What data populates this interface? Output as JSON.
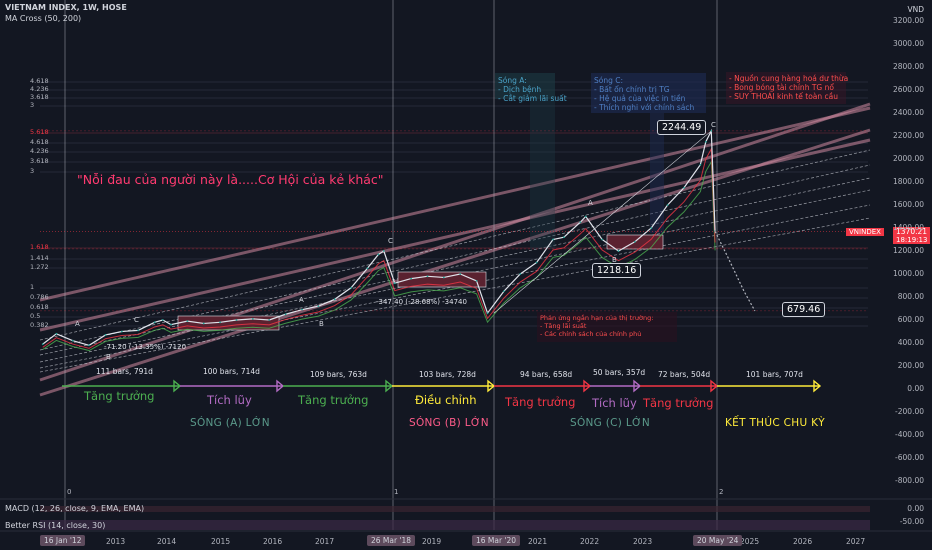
{
  "header": {
    "symbol_line": "VIETNAM INDEX, 1W, HOSE",
    "ma_line": "MA Cross (50, 200)",
    "currency": "VND",
    "macd_line": "MACD (12, 26, close, 9, EMA, EMA)",
    "rsi_line": "Better RSI (14, close, 30)"
  },
  "quote": "\"Nỗi đau của người này là.....Cơ Hội của kẻ khác\"",
  "info_boxes": {
    "wave_a": "Sóng A:\n- Dịch bệnh\n- Cắt giảm lãi suất",
    "wave_c": "Sóng C:\n- Bất ổn chính trị TG\n- Hệ quả của việc in tiền\n- Thích nghi với chính sách",
    "risks": "- Nguồn cung hàng hoá dư thừa\n- Bong bóng tài chính TG nổ\n- SUY THOÁI kinh tế toàn cầu",
    "reaction": "Phản ứng ngắn hạn của thị trường:\n- Tăng lãi suất\n- Các chính sách của chính phủ"
  },
  "price_labels": {
    "peak": "2244.49",
    "trough_2022": "1218.16",
    "target": "679.46",
    "drop_2018": "-347.40 (-28.68%) -34740",
    "drop_2014": "-71.20 (-13.35%) -7120",
    "current_symbol": "VNINDEX",
    "current_price": "1370.21",
    "current_time": "18:19:13"
  },
  "wave_labels": [
    "A",
    "B",
    "C",
    "A",
    "B",
    "C",
    "A",
    "B",
    "C"
  ],
  "bars_labels": [
    "111 bars, 791d",
    "100 bars, 714d",
    "109 bars, 763d",
    "103 bars, 728d",
    "94 bars, 658d",
    "50 bars, 357d",
    "72 bars, 504d",
    "101 bars, 707d"
  ],
  "phase_labels": {
    "p1": "Tăng trưởng",
    "p2": "Tích lũy",
    "p3": "Tăng trưởng",
    "p4": "Điều chỉnh",
    "p5": "Tăng trưởng",
    "p6": "Tích lũy",
    "p7": "Tăng trưởng"
  },
  "wave_phase_labels": {
    "a": "SÓNG (A) LỚN",
    "b": "SÓNG (B) LỚN",
    "c": "SÓNG (C) LỚN",
    "end": "KẾT THÚC CHU KỲ"
  },
  "marker_numbers": [
    "0",
    "1",
    "2"
  ],
  "fib_labels": [
    "4.618",
    "4.236",
    "3.618",
    "3",
    "5.618",
    "4.618",
    "4.236",
    "3.618",
    "3",
    "1.618",
    "1.414",
    "1.272",
    "1",
    "0.786",
    "0.618",
    "0.5",
    "0.382"
  ],
  "y_axis": {
    "ticks": [
      "3200.00",
      "3000.00",
      "2800.00",
      "2600.00",
      "2400.00",
      "2200.00",
      "2000.00",
      "1800.00",
      "1600.00",
      "1400.00",
      "1200.00",
      "1000.00",
      "800.00",
      "600.00",
      "400.00",
      "200.00",
      "0.00",
      "-200.00",
      "-400.00",
      "-600.00",
      "-800.00"
    ],
    "macd_ticks": [
      "0.00",
      "-50.00"
    ]
  },
  "x_axis": {
    "ticks": [
      "2013",
      "2014",
      "2015",
      "2016",
      "2017",
      "2019",
      "2021",
      "2022",
      "2023",
      "2025",
      "2026",
      "2027"
    ],
    "highlights": [
      "16 Jan '12",
      "26 Mar '18",
      "16 Mar '20",
      "20 May '24"
    ]
  },
  "chart_data": {
    "type": "line",
    "title": "VIETNAM INDEX, 1W, HOSE",
    "xlabel": "",
    "ylabel": "",
    "ylim": [
      -800,
      3200
    ],
    "xlim": [
      2012.0,
      2027.3
    ],
    "series": [
      {
        "name": "VNINDEX",
        "x": [
          2012.05,
          2012.3,
          2012.6,
          2012.9,
          2013.2,
          2013.5,
          2013.8,
          2014.1,
          2014.25,
          2014.4,
          2014.7,
          2015.0,
          2015.3,
          2015.6,
          2015.9,
          2016.2,
          2016.5,
          2016.8,
          2017.1,
          2017.4,
          2017.7,
          2018.0,
          2018.2,
          2018.3,
          2018.5,
          2018.8,
          2019.1,
          2019.4,
          2019.7,
          2020.0,
          2020.2,
          2020.5,
          2020.8,
          2021.1,
          2021.4,
          2021.6,
          2021.9,
          2022.0,
          2022.3,
          2022.6,
          2022.9,
          2023.2,
          2023.5,
          2023.8,
          2024.1,
          2024.2,
          2024.3,
          2024.37
        ],
        "y": [
          390,
          480,
          420,
          380,
          470,
          500,
          510,
          580,
          600,
          560,
          590,
          570,
          580,
          600,
          610,
          600,
          650,
          690,
          720,
          780,
          880,
          1050,
          1170,
          1200,
          920,
          960,
          980,
          970,
          1000,
          940,
          660,
          850,
          1000,
          1100,
          1300,
          1320,
          1450,
          1500,
          1300,
          1200,
          1280,
          1400,
          1600,
          1750,
          1950,
          2150,
          2244,
          1370
        ]
      }
    ],
    "projection": {
      "name": "Projection",
      "x": [
        2024.37,
        2024.6,
        2024.9,
        2025.1
      ],
      "y": [
        1370,
        1150,
        850,
        679
      ]
    },
    "levels": [
      2244.49,
      1218.16,
      679.46
    ],
    "annotations": [
      "A",
      "B",
      "C",
      "A",
      "B",
      "C",
      "A",
      "B",
      "C"
    ],
    "grid": false
  }
}
